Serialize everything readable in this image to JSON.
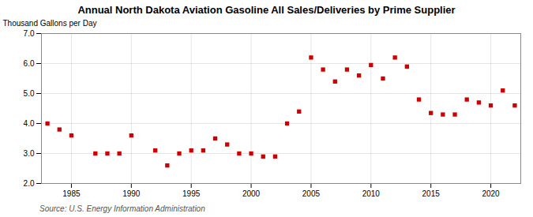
{
  "chart_data": {
    "type": "scatter",
    "title": "Annual North Dakota Aviation Gasoline All Sales/Deliveries by Prime Supplier",
    "ylabel": "Thousand Gallons per Day",
    "source": "Source: U.S. Energy Information Administration",
    "x": [
      1983,
      1984,
      1985,
      1987,
      1988,
      1989,
      1990,
      1992,
      1993,
      1994,
      1995,
      1996,
      1997,
      1998,
      1999,
      2000,
      2001,
      2002,
      2003,
      2004,
      2005,
      2006,
      2007,
      2008,
      2009,
      2010,
      2011,
      2012,
      2013,
      2014,
      2015,
      2016,
      2017,
      2018,
      2019,
      2020,
      2021,
      2022
    ],
    "values": [
      4.0,
      3.8,
      3.6,
      3.0,
      3.0,
      3.0,
      3.6,
      3.1,
      2.6,
      3.0,
      3.1,
      3.1,
      3.5,
      3.3,
      3.0,
      3.0,
      2.9,
      2.9,
      4.0,
      4.4,
      6.2,
      5.8,
      5.4,
      5.8,
      5.6,
      5.95,
      5.5,
      6.2,
      5.9,
      4.8,
      4.35,
      4.3,
      4.3,
      4.8,
      4.7,
      4.6,
      5.1,
      4.6
    ],
    "color": "#cc0000",
    "marker": "square",
    "xlim": [
      1982.5,
      2022.5
    ],
    "xticks": [
      1985,
      1990,
      1995,
      2000,
      2005,
      2010,
      2015,
      2020
    ],
    "ylim": [
      2.0,
      7.0
    ],
    "yticks": [
      {
        "value": 2.0,
        "label": "2.0"
      },
      {
        "value": 3.0,
        "label": "3.0"
      },
      {
        "value": 4.0,
        "label": "4.0"
      },
      {
        "value": 5.0,
        "label": "5.0"
      },
      {
        "value": 6.0,
        "label": "6.0"
      },
      {
        "value": 7.0,
        "label": "7.0"
      }
    ],
    "grid": true
  }
}
